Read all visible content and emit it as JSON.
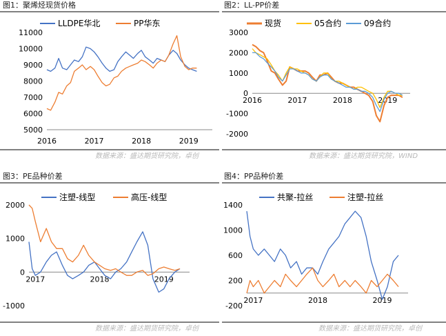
{
  "chart_data": [
    {
      "type": "line",
      "title": "图1：聚烯烃现货价格",
      "ylim": [
        5000,
        11000
      ],
      "y_ticks": [
        5000,
        6000,
        7000,
        8000,
        9000,
        10000,
        11000
      ],
      "xlim": [
        2016.0,
        2019.5
      ],
      "x_ticks": [
        2016,
        2017,
        2018,
        2019
      ],
      "source": "数据来源：盛达期货研究院，卓创",
      "legend_position": "top",
      "series": [
        {
          "name": "LLDPE华北",
          "color": "#4472C4",
          "x": [
            2016.0,
            2016.08,
            2016.17,
            2016.25,
            2016.33,
            2016.42,
            2016.5,
            2016.58,
            2016.67,
            2016.75,
            2016.83,
            2016.92,
            2017.0,
            2017.08,
            2017.17,
            2017.25,
            2017.33,
            2017.42,
            2017.5,
            2017.58,
            2017.67,
            2017.75,
            2017.83,
            2017.92,
            2018.0,
            2018.08,
            2018.17,
            2018.25,
            2018.33,
            2018.42,
            2018.5,
            2018.58,
            2018.67,
            2018.75,
            2018.83,
            2018.92,
            2019.0,
            2019.08,
            2019.17
          ],
          "y": [
            8700,
            8600,
            8800,
            9400,
            8800,
            8700,
            9000,
            9300,
            9200,
            9500,
            10100,
            10000,
            9800,
            9500,
            9100,
            8800,
            8600,
            8700,
            9200,
            9500,
            9800,
            9600,
            9400,
            9700,
            9900,
            9500,
            9300,
            9100,
            9400,
            9300,
            9200,
            9600,
            9900,
            9700,
            9300,
            9000,
            8800,
            8700,
            8600
          ]
        },
        {
          "name": "PP华东",
          "color": "#ED7D31",
          "x": [
            2016.0,
            2016.08,
            2016.17,
            2016.25,
            2016.33,
            2016.42,
            2016.5,
            2016.58,
            2016.67,
            2016.75,
            2016.83,
            2016.92,
            2017.0,
            2017.08,
            2017.17,
            2017.25,
            2017.33,
            2017.42,
            2017.5,
            2017.58,
            2017.67,
            2017.75,
            2017.83,
            2017.92,
            2018.0,
            2018.08,
            2018.17,
            2018.25,
            2018.33,
            2018.42,
            2018.5,
            2018.58,
            2018.67,
            2018.75,
            2018.83,
            2018.92,
            2019.0,
            2019.08,
            2019.17
          ],
          "y": [
            6300,
            6200,
            6700,
            7300,
            7200,
            7700,
            7900,
            8600,
            8800,
            9000,
            8700,
            8900,
            8700,
            8300,
            7900,
            7700,
            7800,
            8200,
            8300,
            8600,
            8800,
            8900,
            9000,
            9100,
            9300,
            9200,
            9000,
            8800,
            9100,
            9300,
            9200,
            9600,
            10300,
            10800,
            9500,
            8900,
            8700,
            8800,
            8800
          ]
        }
      ]
    },
    {
      "type": "line",
      "title": "图2：LL-PP价差",
      "ylim": [
        -2000,
        3000
      ],
      "y_ticks": [
        -2000,
        -1000,
        0,
        1000,
        2000,
        3000
      ],
      "xlim": [
        2016.0,
        2019.5
      ],
      "x_ticks": [
        2016,
        2017,
        2018,
        2019
      ],
      "source": "数据来源：盛达期货研究院，WIND",
      "legend_position": "top",
      "series": [
        {
          "name": "现货",
          "color": "#ED7D31",
          "x": [
            2016.0,
            2016.08,
            2016.17,
            2016.25,
            2016.33,
            2016.42,
            2016.5,
            2016.58,
            2016.67,
            2016.75,
            2016.83,
            2016.92,
            2017.0,
            2017.08,
            2017.17,
            2017.25,
            2017.33,
            2017.42,
            2017.5,
            2017.58,
            2017.67,
            2017.75,
            2017.83,
            2017.92,
            2018.0,
            2018.08,
            2018.17,
            2018.25,
            2018.33,
            2018.42,
            2018.5,
            2018.58,
            2018.67,
            2018.75,
            2018.83,
            2018.92,
            2019.0,
            2019.08,
            2019.17,
            2019.25,
            2019.33
          ],
          "y": [
            2400,
            2300,
            2100,
            2000,
            1600,
            1100,
            1000,
            700,
            400,
            600,
            1300,
            1200,
            1100,
            1100,
            1100,
            1000,
            800,
            600,
            900,
            900,
            1000,
            800,
            600,
            500,
            500,
            400,
            300,
            300,
            200,
            100,
            0,
            -100,
            -400,
            -1100,
            -1400,
            -600,
            -200,
            -100,
            -100,
            -100,
            -200
          ]
        },
        {
          "name": "05合约",
          "color": "#FFC000",
          "x": [
            2016.0,
            2016.08,
            2016.17,
            2016.25,
            2016.33,
            2016.42,
            2016.5,
            2016.58,
            2016.67,
            2016.75,
            2016.83,
            2016.92,
            2017.0,
            2017.08,
            2017.17,
            2017.25,
            2017.33,
            2017.42,
            2017.5,
            2017.58,
            2017.67,
            2017.75,
            2017.83,
            2017.92,
            2018.0,
            2018.08,
            2018.17,
            2018.25,
            2018.33,
            2018.42,
            2018.5,
            2018.58,
            2018.67,
            2018.75,
            2018.83,
            2018.92,
            2019.0,
            2019.08,
            2019.17,
            2019.25,
            2019.33
          ],
          "y": [
            2200,
            2000,
            1900,
            1800,
            1700,
            1400,
            1100,
            900,
            600,
            1000,
            1300,
            1200,
            1200,
            1100,
            1000,
            900,
            700,
            600,
            800,
            1000,
            1000,
            700,
            600,
            600,
            500,
            400,
            300,
            200,
            300,
            300,
            200,
            100,
            0,
            -300,
            -700,
            -200,
            100,
            100,
            0,
            -100,
            -100
          ]
        },
        {
          "name": "09合约",
          "color": "#5B9BD5",
          "x": [
            2016.0,
            2016.08,
            2016.17,
            2016.25,
            2016.33,
            2016.42,
            2016.5,
            2016.58,
            2016.67,
            2016.75,
            2016.83,
            2016.92,
            2017.0,
            2017.08,
            2017.17,
            2017.25,
            2017.33,
            2017.42,
            2017.5,
            2017.58,
            2017.67,
            2017.75,
            2017.83,
            2017.92,
            2018.0,
            2018.08,
            2018.17,
            2018.25,
            2018.33,
            2018.42,
            2018.5,
            2018.58,
            2018.67,
            2018.75,
            2018.83,
            2018.92,
            2019.0,
            2019.08,
            2019.17,
            2019.25,
            2019.33
          ],
          "y": [
            2000,
            2000,
            1800,
            1700,
            1500,
            1300,
            1100,
            800,
            600,
            900,
            1200,
            1200,
            1100,
            1000,
            1000,
            900,
            700,
            600,
            800,
            900,
            900,
            700,
            600,
            500,
            400,
            300,
            300,
            200,
            200,
            100,
            100,
            0,
            -200,
            -600,
            -900,
            -300,
            0,
            100,
            0,
            0,
            -100
          ]
        }
      ]
    },
    {
      "type": "line",
      "title": "图3：PE品种价差",
      "ylim": [
        -1000,
        2000
      ],
      "y_ticks": [
        -1000,
        0,
        1000,
        2000
      ],
      "xlim": [
        2016.9,
        2019.4
      ],
      "x_ticks": [
        2017,
        2018,
        2019
      ],
      "source": "数据来源：盛达期货研究院，卓创",
      "legend_position": "top",
      "series": [
        {
          "name": "注塑-线型",
          "color": "#4472C4",
          "x": [
            2016.9,
            2016.95,
            2017.0,
            2017.08,
            2017.17,
            2017.25,
            2017.33,
            2017.42,
            2017.5,
            2017.58,
            2017.67,
            2017.75,
            2017.83,
            2017.92,
            2018.0,
            2018.08,
            2018.17,
            2018.25,
            2018.33,
            2018.42,
            2018.5,
            2018.58,
            2018.67,
            2018.75,
            2018.83,
            2018.92,
            2019.0,
            2019.08,
            2019.17,
            2019.25
          ],
          "y": [
            900,
            100,
            -100,
            0,
            300,
            500,
            600,
            200,
            -100,
            -200,
            -100,
            0,
            200,
            300,
            100,
            -100,
            -200,
            0,
            100,
            300,
            600,
            900,
            1200,
            800,
            -200,
            -600,
            -500,
            -200,
            0,
            100
          ]
        },
        {
          "name": "高压-线型",
          "color": "#ED7D31",
          "x": [
            2016.9,
            2016.95,
            2017.0,
            2017.08,
            2017.17,
            2017.25,
            2017.33,
            2017.42,
            2017.5,
            2017.58,
            2017.67,
            2017.75,
            2017.83,
            2017.92,
            2018.0,
            2018.08,
            2018.17,
            2018.25,
            2018.33,
            2018.42,
            2018.5,
            2018.58,
            2018.67,
            2018.75,
            2018.83,
            2018.92,
            2019.0,
            2019.08,
            2019.17,
            2019.25
          ],
          "y": [
            2000,
            1900,
            1500,
            900,
            1300,
            900,
            700,
            700,
            400,
            300,
            500,
            800,
            500,
            300,
            200,
            100,
            50,
            100,
            0,
            -100,
            -100,
            0,
            50,
            -100,
            -50,
            100,
            150,
            100,
            50,
            100
          ]
        }
      ]
    },
    {
      "type": "line",
      "title": "图4：PP品种价差",
      "ylim": [
        -200,
        1400
      ],
      "y_ticks": [
        -200,
        200,
        600,
        1000,
        1400
      ],
      "xlim": [
        2016.9,
        2019.4
      ],
      "x_ticks": [
        2017,
        2018,
        2019
      ],
      "source": "数据来源：盛达期货研究院，卓创",
      "legend_position": "top",
      "series": [
        {
          "name": "共聚-拉丝",
          "color": "#4472C4",
          "x": [
            2016.9,
            2016.95,
            2017.0,
            2017.08,
            2017.17,
            2017.25,
            2017.33,
            2017.42,
            2017.5,
            2017.58,
            2017.67,
            2017.75,
            2017.83,
            2017.92,
            2018.0,
            2018.08,
            2018.17,
            2018.25,
            2018.33,
            2018.42,
            2018.5,
            2018.58,
            2018.67,
            2018.75,
            2018.83,
            2018.92,
            2019.0,
            2019.08,
            2019.17,
            2019.25
          ],
          "y": [
            1300,
            900,
            700,
            600,
            700,
            600,
            500,
            700,
            600,
            400,
            500,
            300,
            400,
            400,
            300,
            500,
            700,
            800,
            900,
            1100,
            1200,
            1300,
            1200,
            900,
            500,
            200,
            -100,
            100,
            500,
            600
          ]
        },
        {
          "name": "注塑-拉丝",
          "color": "#ED7D31",
          "x": [
            2016.9,
            2016.95,
            2017.0,
            2017.08,
            2017.17,
            2017.25,
            2017.33,
            2017.42,
            2017.5,
            2017.58,
            2017.67,
            2017.75,
            2017.83,
            2017.92,
            2018.0,
            2018.08,
            2018.17,
            2018.25,
            2018.33,
            2018.42,
            2018.5,
            2018.58,
            2018.67,
            2018.75,
            2018.83,
            2018.92,
            2019.0,
            2019.08,
            2019.17,
            2019.25
          ],
          "y": [
            0,
            200,
            100,
            200,
            0,
            100,
            200,
            100,
            300,
            200,
            100,
            200,
            300,
            400,
            200,
            100,
            200,
            300,
            100,
            200,
            100,
            200,
            100,
            0,
            200,
            100,
            200,
            300,
            200,
            100
          ]
        }
      ]
    }
  ]
}
